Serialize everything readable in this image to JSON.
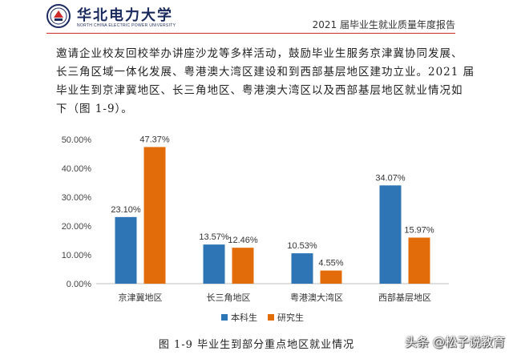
{
  "header": {
    "logo_cn": "华北电力大学",
    "logo_en": "NORTH CHINA ELECTRIC POWER UNIVERSITY",
    "report_title": "2021 届毕业生就业质量年度报告"
  },
  "paragraph": {
    "lines": [
      "邀请企业校友回校举办讲座沙龙等多样活动，鼓励毕业生服务京津冀协同发展、",
      "长三角区域一体化发展、粤港澳大湾区建设和到西部基层地区建功立业。2021 届",
      "毕业生到京津冀地区、长三角地区、粤港澳大湾区以及西部基层地区就业情况如",
      "下（图 1-9）。"
    ]
  },
  "chart_data": {
    "type": "bar",
    "categories": [
      "京津冀地区",
      "长三角地区",
      "粤港澳大湾区",
      "西部基层地区"
    ],
    "series": [
      {
        "name": "本科生",
        "values": [
          23.1,
          13.57,
          10.53,
          34.07
        ],
        "labels": [
          "23.10%",
          "13.57%",
          "10.53%",
          "34.07%"
        ],
        "color": "#2e75b6"
      },
      {
        "name": "研究生",
        "values": [
          47.37,
          12.46,
          4.55,
          15.97
        ],
        "labels": [
          "47.37%",
          "12.46%",
          "4.55%",
          "15.97%"
        ],
        "color": "#e36c0a"
      }
    ],
    "ylim": [
      0,
      50
    ],
    "yticks": [
      "0.00%",
      "10.00%",
      "20.00%",
      "30.00%",
      "40.00%",
      "50.00%"
    ],
    "legend_position": "bottom",
    "grid": false
  },
  "caption": "图 1-9  毕业生到部分重点地区就业情况",
  "watermark": "头条 @松子说教育"
}
